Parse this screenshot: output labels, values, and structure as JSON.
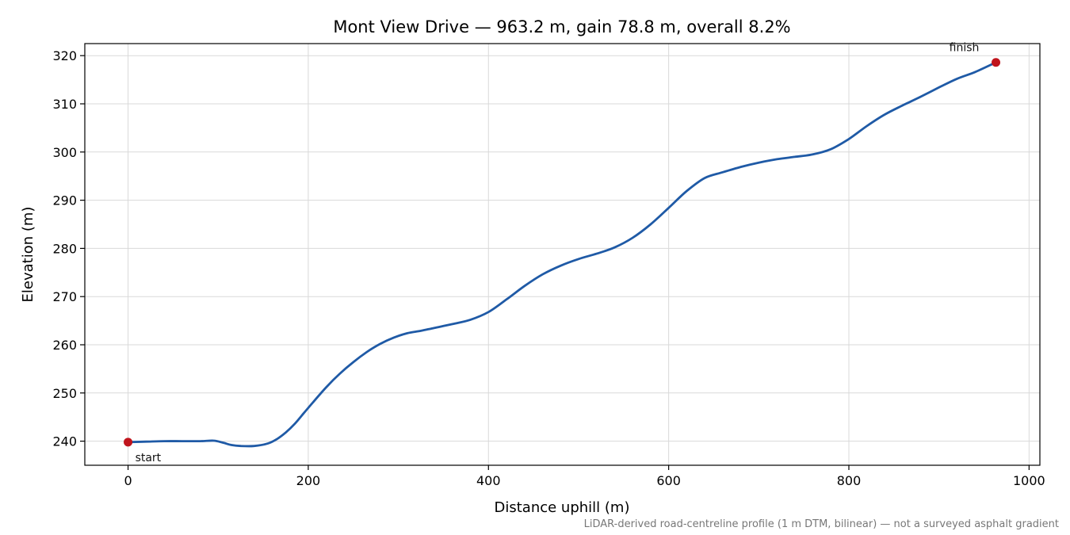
{
  "chart_data": {
    "type": "line",
    "title": "Mont View Drive — 963.2 m, gain 78.8 m, overall 8.2%",
    "xlabel": "Distance uphill (m)",
    "ylabel": "Elevation (m)",
    "xlim": [
      -48,
      1012
    ],
    "ylim": [
      235,
      322.5
    ],
    "x_ticks": [
      0,
      200,
      400,
      600,
      800,
      1000
    ],
    "y_ticks": [
      240,
      250,
      260,
      270,
      280,
      290,
      300,
      310,
      320
    ],
    "grid": true,
    "line_color": "#1f5aa6",
    "marker_color": "#c0141c",
    "series": [
      {
        "x": [
          0,
          20,
          40,
          60,
          80,
          95,
          105,
          115,
          125,
          140,
          155,
          165,
          175,
          185,
          195,
          205,
          220,
          235,
          250,
          265,
          280,
          295,
          310,
          325,
          340,
          360,
          380,
          400,
          420,
          440,
          460,
          480,
          500,
          520,
          540,
          560,
          580,
          600,
          620,
          640,
          660,
          680,
          700,
          720,
          740,
          760,
          780,
          800,
          820,
          840,
          860,
          880,
          900,
          920,
          940,
          963.2
        ],
        "y": [
          239.8,
          239.9,
          240.0,
          240.0,
          240.0,
          240.1,
          239.7,
          239.2,
          239.0,
          239.0,
          239.5,
          240.4,
          241.8,
          243.6,
          245.8,
          248.0,
          251.2,
          254.0,
          256.4,
          258.5,
          260.2,
          261.5,
          262.4,
          262.9,
          263.5,
          264.3,
          265.2,
          266.8,
          269.4,
          272.2,
          274.6,
          276.4,
          277.8,
          278.9,
          280.2,
          282.2,
          285.0,
          288.4,
          291.9,
          294.6,
          295.8,
          296.9,
          297.8,
          298.5,
          299.0,
          299.5,
          300.6,
          302.7,
          305.4,
          307.8,
          309.7,
          311.5,
          313.4,
          315.2,
          316.6,
          318.6
        ]
      }
    ],
    "annotations": [
      {
        "text": "start",
        "x": 0,
        "y": 239.8
      },
      {
        "text": "finish",
        "x": 963.2,
        "y": 318.6
      }
    ],
    "footnote": "LiDAR-derived road-centreline profile (1 m DTM, bilinear) — not a surveyed asphalt gradient"
  }
}
